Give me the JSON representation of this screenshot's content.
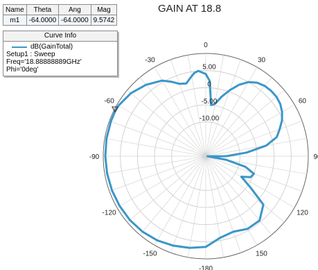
{
  "title": "GAIN AT 18.8",
  "marker_table": {
    "headers": [
      "Name",
      "Theta",
      "Ang",
      "Mag"
    ],
    "row": [
      "m1",
      "-64.0000",
      "-64.0000",
      "9.5742"
    ]
  },
  "curve_info": {
    "header": "Curve Info",
    "trace": "dB(GainTotal)",
    "setup": "Setup1 : Sweep",
    "freq": "Freq='18.88888889GHz' Phi='0deg'"
  },
  "chart_data": {
    "type": "polar",
    "title": "GAIN AT 18.8",
    "radial_ticks": [
      5.0,
      0.0,
      -5.0,
      -10.0
    ],
    "radial_tick_labels": [
      "5.00",
      "0",
      "-5.00",
      "-10.00"
    ],
    "radial_range": [
      -20,
      10
    ],
    "angle_ticks": [
      0,
      30,
      60,
      90,
      120,
      150,
      -180,
      -150,
      -120,
      -90,
      -60,
      -30
    ],
    "angle_tick_labels": [
      "0",
      "30",
      "60",
      "90",
      "120",
      "150",
      "-180",
      "-150",
      "-120",
      "-90",
      "-60",
      "-30"
    ],
    "series": [
      {
        "name": "dB(GainTotal)",
        "color": "#3b96c8",
        "theta": [
          -180,
          -170,
          -160,
          -150,
          -140,
          -130,
          -120,
          -110,
          -100,
          -90,
          -80,
          -70,
          -64,
          -60,
          -50,
          -40,
          -30,
          -25,
          -20,
          -15,
          -12,
          -8,
          -5,
          0,
          3,
          6,
          10,
          15,
          20,
          25,
          30,
          35,
          40,
          45,
          50,
          55,
          60,
          65,
          70,
          75,
          80,
          85,
          90,
          95,
          100,
          105,
          110,
          115,
          120,
          125,
          130,
          140,
          150,
          160,
          170,
          180
        ],
        "r_db": [
          6.5,
          7.2,
          7.8,
          8.4,
          8.8,
          9.0,
          9.1,
          9.2,
          9.3,
          9.4,
          9.5,
          9.55,
          9.57,
          9.5,
          8.6,
          7.2,
          5.5,
          4.0,
          2.5,
          2.0,
          3.0,
          4.5,
          5.0,
          4.0,
          2.0,
          -5.0,
          -4.5,
          -2.0,
          0.5,
          3.0,
          5.0,
          6.2,
          6.8,
          7.0,
          7.0,
          6.6,
          5.8,
          4.6,
          3.0,
          1.5,
          -2.0,
          -8.0,
          -14.0,
          -19.5,
          -14.0,
          -8.0,
          -5.0,
          -5.5,
          -8.0,
          -4.0,
          2.0,
          4.5,
          4.5,
          3.5,
          4.2,
          6.5
        ]
      }
    ],
    "markers": [
      {
        "name": "m1",
        "theta": -64.0,
        "r_db": 9.5742
      }
    ],
    "grid": true
  }
}
